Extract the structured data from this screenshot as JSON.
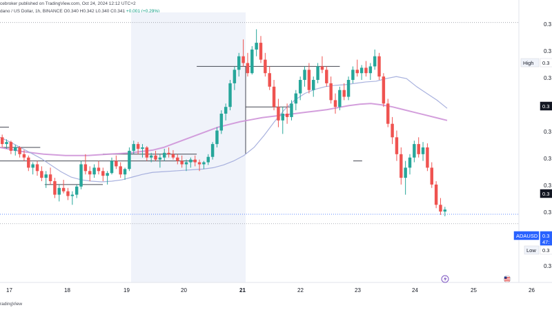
{
  "header": {
    "publisher": "cebroker published on TradingView.com, Oct 24, 2024 12:12 UTC+2",
    "symbol": "dano / US Dollar, 1h, BINANCE",
    "open": "O0.340",
    "high": "H0.342",
    "low": "L0.340",
    "close": "C0.341",
    "change": "+0.001 (+0.29%)"
  },
  "footer": {
    "brand": "radingView"
  },
  "price_axis": {
    "labels": [
      "0.3",
      "0.3",
      "0.3",
      "0.3",
      "0.3",
      "0.3",
      "0.3",
      "0.3",
      "0.3",
      "0.3"
    ],
    "markers": [
      {
        "text": "High",
        "value": "0.3",
        "style": "light"
      },
      {
        "text": "",
        "value": "0.3",
        "style": "dark"
      },
      {
        "text": "",
        "value": "0.3",
        "style": "dark"
      },
      {
        "text": "ADAUSD",
        "value": "0.3",
        "sub": "47:",
        "style": "blue"
      },
      {
        "text": "Low",
        "value": "0.3",
        "style": "light"
      }
    ]
  },
  "colors": {
    "up": "#26a69a",
    "down": "#ef5350",
    "ma_fast": "#9fa8da",
    "ma_slow": "#ce93d8",
    "level": "#434651",
    "blue": "#2962ff",
    "session": "#f0f3fa"
  },
  "icons": [
    "lightning-icon",
    "us-flag-icon"
  ],
  "chart_data": {
    "type": "candlestick",
    "x_ticks": [
      "17",
      "18",
      "19",
      "20",
      "21",
      "22",
      "23",
      "24",
      "25",
      "26"
    ],
    "ohlc_approx": [
      [
        0.3455,
        0.3459,
        0.344,
        0.3445
      ],
      [
        0.3445,
        0.3452,
        0.3438,
        0.3448
      ],
      [
        0.3448,
        0.345,
        0.343,
        0.3435
      ],
      [
        0.3435,
        0.3444,
        0.3428,
        0.344
      ],
      [
        0.344,
        0.3442,
        0.3425,
        0.343
      ],
      [
        0.343,
        0.3436,
        0.342,
        0.3425
      ],
      [
        0.3425,
        0.3428,
        0.3405,
        0.341
      ],
      [
        0.341,
        0.3418,
        0.34,
        0.3415
      ],
      [
        0.3415,
        0.342,
        0.3398,
        0.3405
      ],
      [
        0.3405,
        0.3412,
        0.339,
        0.3395
      ],
      [
        0.3395,
        0.3405,
        0.338,
        0.34
      ],
      [
        0.34,
        0.341,
        0.3385,
        0.339
      ],
      [
        0.339,
        0.3395,
        0.3365,
        0.337
      ],
      [
        0.337,
        0.3385,
        0.336,
        0.338
      ],
      [
        0.338,
        0.3392,
        0.3372,
        0.3375
      ],
      [
        0.3375,
        0.338,
        0.3362,
        0.3368
      ],
      [
        0.3368,
        0.3375,
        0.3355,
        0.337
      ],
      [
        0.337,
        0.3385,
        0.3365,
        0.3382
      ],
      [
        0.3382,
        0.342,
        0.3378,
        0.3415
      ],
      [
        0.3415,
        0.343,
        0.34,
        0.3405
      ],
      [
        0.3405,
        0.3412,
        0.339,
        0.34
      ],
      [
        0.34,
        0.3415,
        0.3395,
        0.341
      ],
      [
        0.341,
        0.342,
        0.34,
        0.3405
      ],
      [
        0.3405,
        0.341,
        0.339,
        0.3398
      ],
      [
        0.3398,
        0.3405,
        0.3385,
        0.3402
      ],
      [
        0.3402,
        0.3425,
        0.34,
        0.342
      ],
      [
        0.342,
        0.3428,
        0.3408,
        0.3412
      ],
      [
        0.3412,
        0.3418,
        0.3395,
        0.34
      ],
      [
        0.34,
        0.341,
        0.3392,
        0.3408
      ],
      [
        0.3408,
        0.344,
        0.3405,
        0.3435
      ],
      [
        0.3435,
        0.345,
        0.343,
        0.3445
      ],
      [
        0.3445,
        0.3448,
        0.343,
        0.3438
      ],
      [
        0.3438,
        0.3445,
        0.3425,
        0.344
      ],
      [
        0.344,
        0.3442,
        0.342,
        0.3425
      ],
      [
        0.3425,
        0.3432,
        0.3418,
        0.3428
      ],
      [
        0.3428,
        0.3435,
        0.342,
        0.3422
      ],
      [
        0.3422,
        0.343,
        0.341,
        0.3425
      ],
      [
        0.3425,
        0.3438,
        0.342,
        0.3432
      ],
      [
        0.3432,
        0.344,
        0.3425,
        0.343
      ],
      [
        0.343,
        0.3436,
        0.3422,
        0.3425
      ],
      [
        0.3425,
        0.343,
        0.3415,
        0.342
      ],
      [
        0.342,
        0.3428,
        0.341,
        0.3415
      ],
      [
        0.3415,
        0.3422,
        0.3405,
        0.3418
      ],
      [
        0.3418,
        0.3425,
        0.341,
        0.3422
      ],
      [
        0.3422,
        0.3428,
        0.3412,
        0.3418
      ],
      [
        0.3418,
        0.3422,
        0.3405,
        0.3415
      ],
      [
        0.3415,
        0.342,
        0.3408,
        0.3418
      ],
      [
        0.3418,
        0.343,
        0.3414,
        0.3426
      ],
      [
        0.3426,
        0.3448,
        0.3422,
        0.3445
      ],
      [
        0.3445,
        0.347,
        0.344,
        0.3465
      ],
      [
        0.3465,
        0.3495,
        0.346,
        0.349
      ],
      [
        0.349,
        0.3505,
        0.348,
        0.35
      ],
      [
        0.35,
        0.354,
        0.3495,
        0.3535
      ],
      [
        0.3535,
        0.356,
        0.3525,
        0.3555
      ],
      [
        0.3555,
        0.358,
        0.3545,
        0.3575
      ],
      [
        0.3575,
        0.36,
        0.356,
        0.3565
      ],
      [
        0.3565,
        0.358,
        0.3545,
        0.355
      ],
      [
        0.355,
        0.359,
        0.3548,
        0.3585
      ],
      [
        0.3585,
        0.3615,
        0.3575,
        0.3595
      ],
      [
        0.3595,
        0.3605,
        0.3565,
        0.357
      ],
      [
        0.357,
        0.358,
        0.3545,
        0.355
      ],
      [
        0.355,
        0.356,
        0.3525,
        0.353
      ],
      [
        0.353,
        0.354,
        0.3495,
        0.35
      ],
      [
        0.35,
        0.3512,
        0.347,
        0.348
      ],
      [
        0.348,
        0.35,
        0.346,
        0.349
      ],
      [
        0.349,
        0.3505,
        0.3475,
        0.3485
      ],
      [
        0.3485,
        0.351,
        0.348,
        0.3505
      ],
      [
        0.3505,
        0.3525,
        0.3495,
        0.352
      ],
      [
        0.352,
        0.3545,
        0.351,
        0.354
      ],
      [
        0.354,
        0.356,
        0.353,
        0.3555
      ],
      [
        0.3555,
        0.3565,
        0.352,
        0.3525
      ],
      [
        0.3525,
        0.3545,
        0.3515,
        0.354
      ],
      [
        0.354,
        0.3565,
        0.3535,
        0.356
      ],
      [
        0.356,
        0.3575,
        0.355,
        0.3555
      ],
      [
        0.3555,
        0.356,
        0.353,
        0.3535
      ],
      [
        0.3535,
        0.3545,
        0.3505,
        0.351
      ],
      [
        0.351,
        0.352,
        0.349,
        0.35
      ],
      [
        0.35,
        0.353,
        0.3495,
        0.3525
      ],
      [
        0.3525,
        0.3535,
        0.351,
        0.3515
      ],
      [
        0.3515,
        0.3545,
        0.351,
        0.354
      ],
      [
        0.354,
        0.356,
        0.3535,
        0.3555
      ],
      [
        0.3555,
        0.357,
        0.3545,
        0.355
      ],
      [
        0.355,
        0.3562,
        0.354,
        0.3558
      ],
      [
        0.3558,
        0.3568,
        0.3545,
        0.355
      ],
      [
        0.355,
        0.3565,
        0.354,
        0.356
      ],
      [
        0.356,
        0.3585,
        0.3555,
        0.3575
      ],
      [
        0.3575,
        0.358,
        0.354,
        0.3545
      ],
      [
        0.3545,
        0.355,
        0.35,
        0.3505
      ],
      [
        0.3505,
        0.3512,
        0.347,
        0.3475
      ],
      [
        0.3475,
        0.3485,
        0.3445,
        0.3455
      ],
      [
        0.3455,
        0.3465,
        0.342,
        0.343
      ],
      [
        0.343,
        0.344,
        0.3385,
        0.3395
      ],
      [
        0.3395,
        0.342,
        0.337,
        0.341
      ],
      [
        0.341,
        0.343,
        0.34,
        0.3425
      ],
      [
        0.3425,
        0.345,
        0.3418,
        0.3445
      ],
      [
        0.3445,
        0.3455,
        0.3425,
        0.343
      ],
      [
        0.343,
        0.3448,
        0.342,
        0.344
      ],
      [
        0.344,
        0.3446,
        0.3405,
        0.341
      ],
      [
        0.341,
        0.3418,
        0.338,
        0.3385
      ],
      [
        0.3385,
        0.339,
        0.335,
        0.3355
      ],
      [
        0.3355,
        0.3365,
        0.334,
        0.3345
      ],
      [
        0.3345,
        0.3352,
        0.3338,
        0.3348
      ]
    ],
    "ma_fast_approx": [
      0.3455,
      0.3448,
      0.344,
      0.3432,
      0.3424,
      0.3414,
      0.3404,
      0.3396,
      0.3392,
      0.339,
      0.3389,
      0.339,
      0.3392,
      0.3396,
      0.34,
      0.3403,
      0.3404,
      0.3405,
      0.3406,
      0.3407,
      0.3408,
      0.341,
      0.3414,
      0.342,
      0.3428,
      0.344,
      0.3458,
      0.3478,
      0.3496,
      0.351,
      0.352,
      0.3526,
      0.353,
      0.3532,
      0.3533,
      0.3535,
      0.3537,
      0.3538,
      0.3542,
      0.3545,
      0.3542,
      0.353,
      0.352,
      0.351,
      0.3498
    ],
    "ma_slow_approx": [
      0.344,
      0.3437,
      0.3434,
      0.3432,
      0.343,
      0.3429,
      0.3428,
      0.3428,
      0.3428,
      0.3429,
      0.343,
      0.3431,
      0.3432,
      0.3434,
      0.3436,
      0.344,
      0.3446,
      0.3452,
      0.3458,
      0.3464,
      0.347,
      0.3474,
      0.3478,
      0.3481,
      0.3484,
      0.3486,
      0.3488,
      0.349,
      0.3492,
      0.3494,
      0.3496,
      0.3499,
      0.3502,
      0.3504,
      0.3505,
      0.3503,
      0.35,
      0.3496,
      0.3492,
      0.3488,
      0.3484,
      0.348
    ],
    "levels": [
      {
        "from": 0.0,
        "to": 0.02,
        "value": 0.347
      },
      {
        "from": 0.0,
        "to": 0.09,
        "value": 0.344
      },
      {
        "from": 0.0,
        "to": 0.44,
        "value": 0.342
      },
      {
        "from": 0.1,
        "to": 0.23,
        "value": 0.3385
      },
      {
        "from": 0.23,
        "to": 0.44,
        "value": 0.343
      },
      {
        "from": 0.44,
        "to": 0.76,
        "value": 0.356
      },
      {
        "from": 0.55,
        "to": 0.65,
        "value": 0.35
      },
      {
        "from": 0.79,
        "to": 0.81,
        "value": 0.342
      }
    ],
    "high_line": 0.3625,
    "current": 0.3341,
    "low_line": 0.3327,
    "session_highlight": [
      "19",
      "21"
    ]
  }
}
